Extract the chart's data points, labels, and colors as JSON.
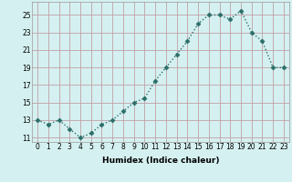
{
  "x": [
    0,
    1,
    2,
    3,
    4,
    5,
    6,
    7,
    8,
    9,
    10,
    11,
    12,
    13,
    14,
    15,
    16,
    17,
    18,
    19,
    20,
    21,
    22,
    23
  ],
  "y": [
    13,
    12.5,
    13,
    12,
    11,
    11.5,
    12.5,
    13,
    14,
    15,
    15.5,
    17.5,
    19,
    20.5,
    22,
    24,
    25,
    25,
    24.5,
    25.5,
    23,
    22,
    19,
    19
  ],
  "xlabel": "Humidex (Indice chaleur)",
  "ylim": [
    10.5,
    26.5
  ],
  "xlim": [
    -0.5,
    23.5
  ],
  "yticks": [
    11,
    13,
    15,
    17,
    19,
    21,
    23,
    25
  ],
  "xtick_labels": [
    "0",
    "1",
    "2",
    "3",
    "4",
    "5",
    "6",
    "7",
    "8",
    "9",
    "10",
    "11",
    "12",
    "13",
    "14",
    "15",
    "16",
    "17",
    "18",
    "19",
    "20",
    "21",
    "22",
    "23"
  ],
  "line_color": "#2a6e68",
  "bg_color": "#d5f0f0",
  "grid_color": "#c0a0a8",
  "marker_size": 2.5,
  "line_width": 1.0,
  "label_fontsize": 6.5,
  "tick_fontsize": 5.5
}
